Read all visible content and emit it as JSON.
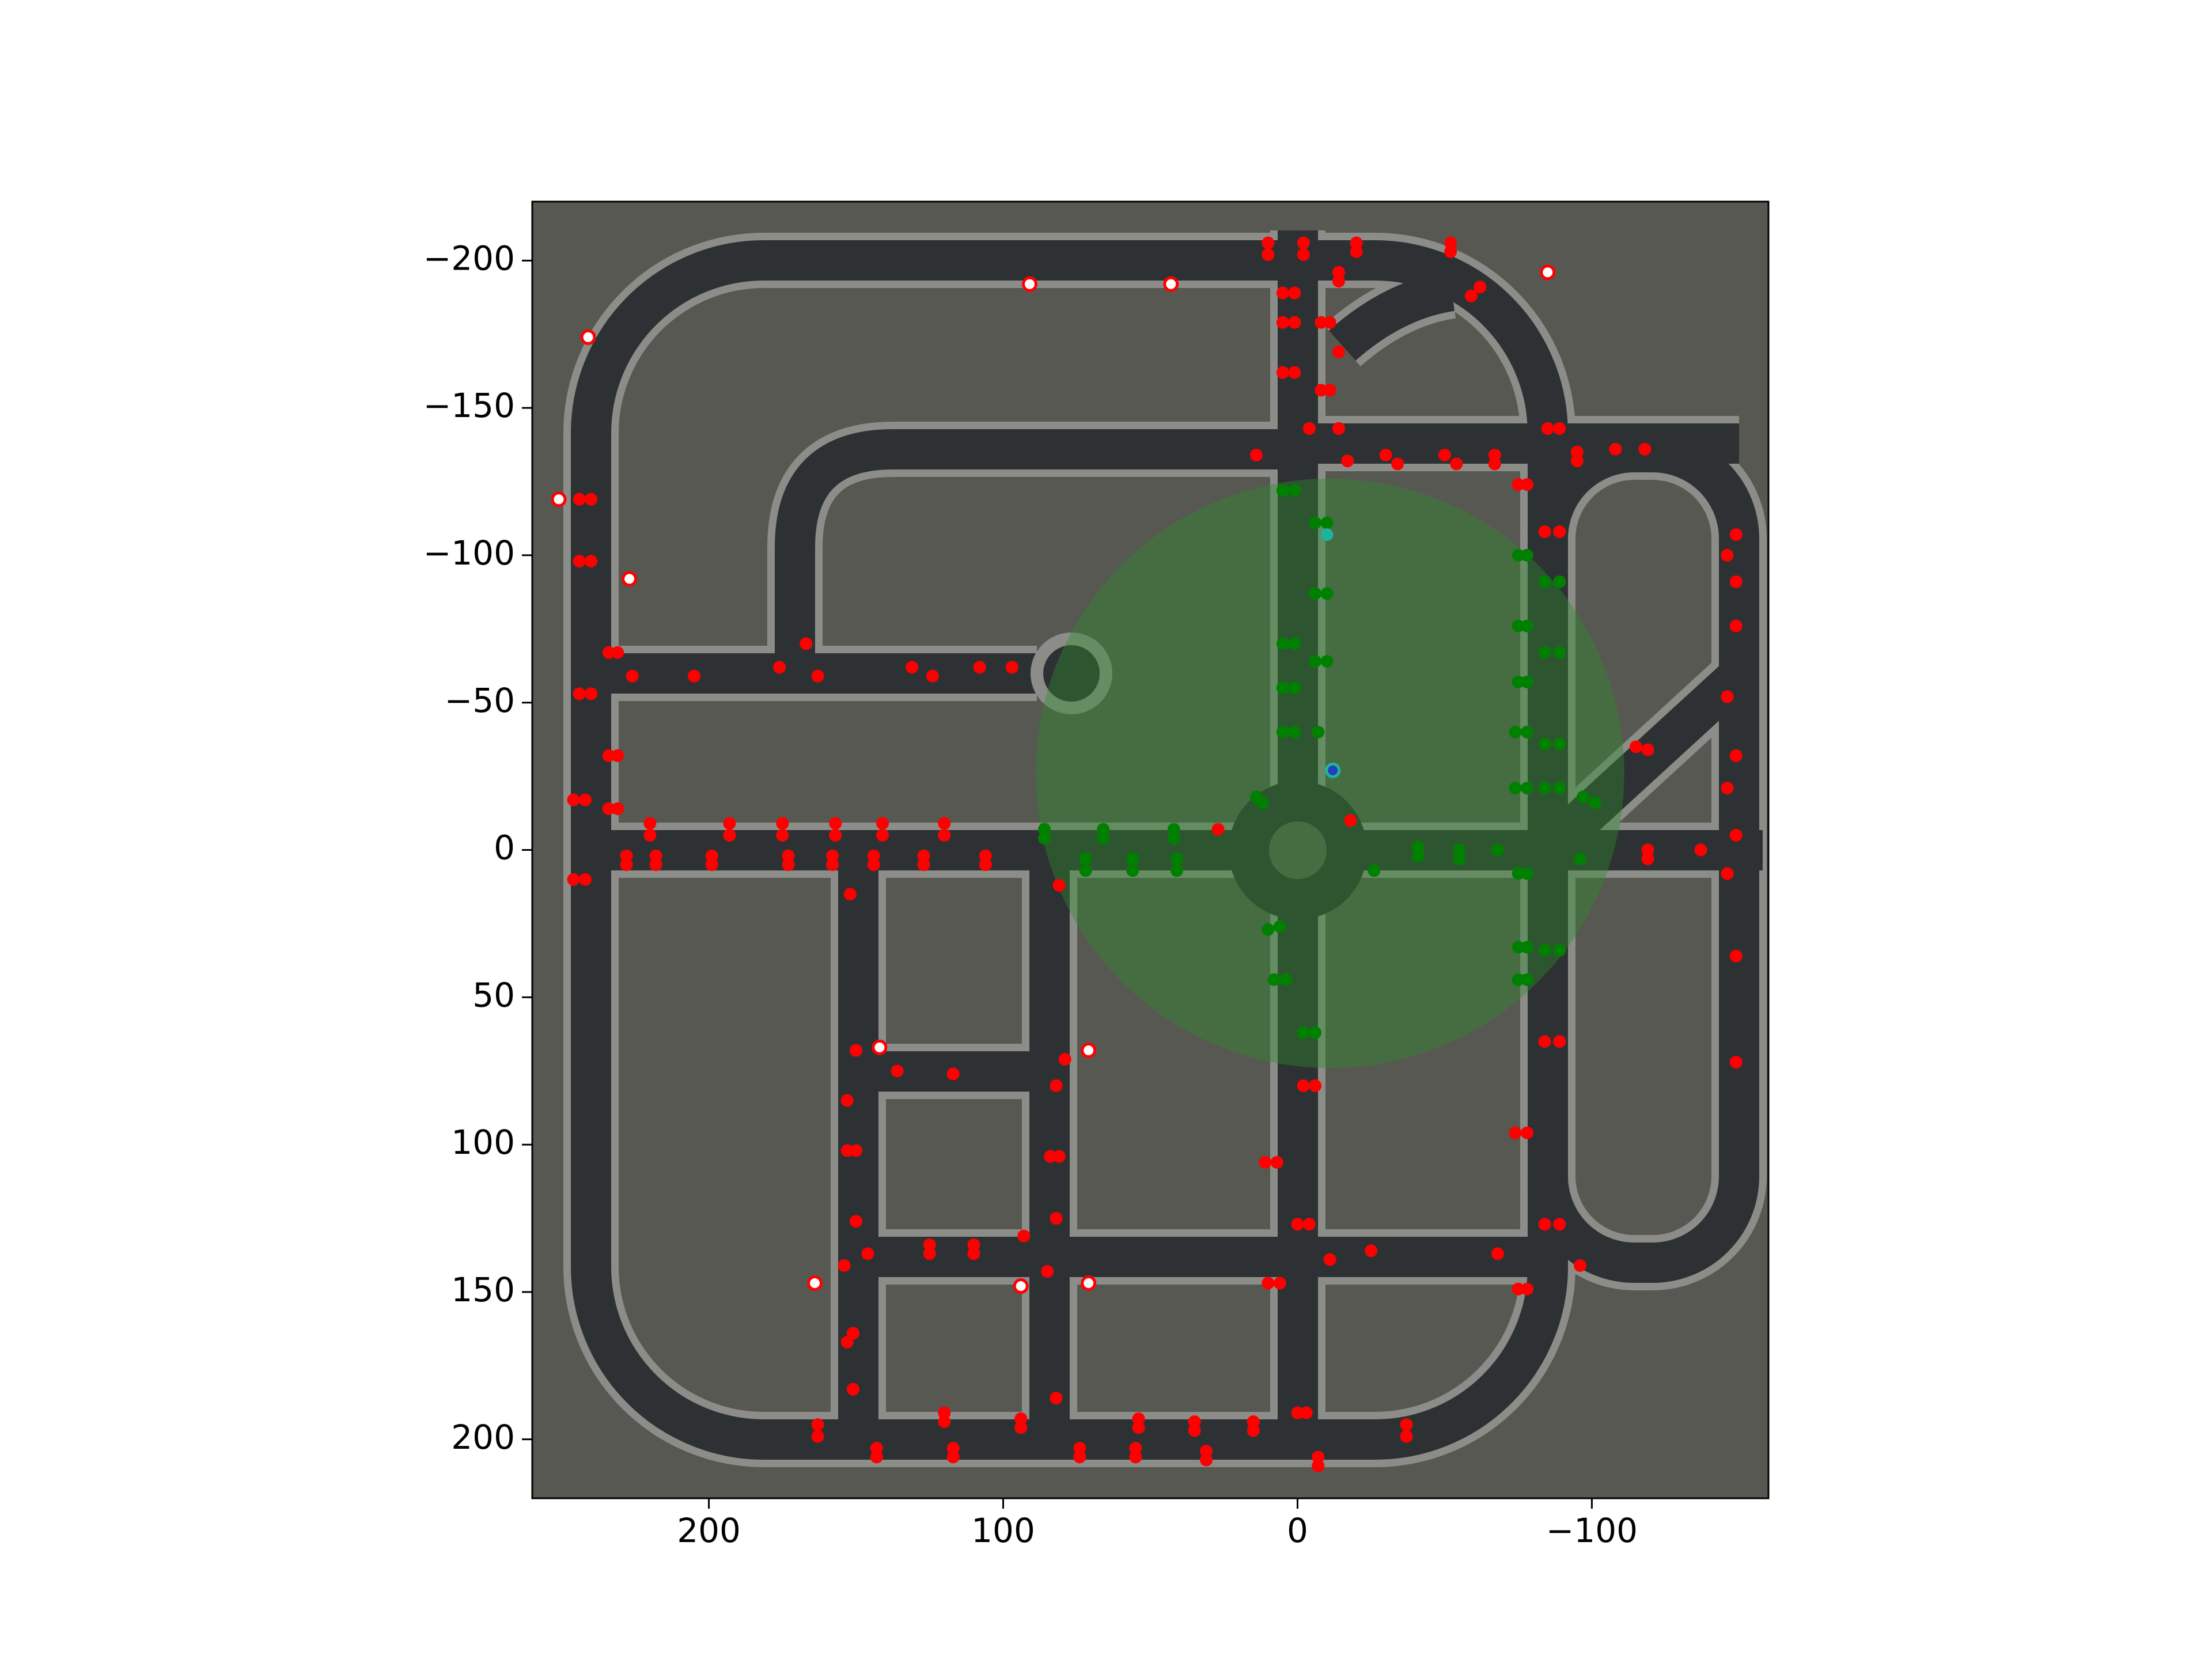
{
  "chart_data": {
    "type": "scatter",
    "xlim": [
      260,
      -160
    ],
    "ylim": [
      220,
      -220
    ],
    "xticks": [
      200,
      100,
      0,
      {
        "value": -100,
        "label": "−100"
      }
    ],
    "yticks": [
      {
        "value": -200,
        "label": "−200"
      },
      {
        "value": -150,
        "label": "−150"
      },
      {
        "value": -100,
        "label": "−100"
      },
      {
        "value": -50,
        "label": "−50"
      },
      0,
      50,
      100,
      150,
      200
    ],
    "circle": {
      "x": -11,
      "y": -26,
      "r": 100,
      "color": "#2e8b2e",
      "alpha": 0.4
    },
    "series": [
      {
        "color": "#ff0000",
        "x": [
          10,
          10,
          -2,
          -2,
          -20,
          -20,
          -52,
          -52,
          -14,
          -14,
          5,
          1,
          5,
          1,
          -8,
          -11,
          -14,
          5,
          1,
          -8,
          -11,
          -4,
          -14,
          14,
          -17,
          -30,
          -34,
          -50,
          -54,
          -67,
          -67,
          -85,
          -89,
          -95,
          -95,
          -108,
          -118,
          -59,
          -62,
          -75,
          -78,
          -84,
          -89,
          -149,
          -146,
          -149,
          -149,
          -146,
          -149,
          -146,
          -149,
          -146,
          -149,
          -149,
          -115,
          -119,
          -119,
          -119,
          -137,
          244,
          240,
          244,
          240,
          234,
          231,
          244,
          240,
          234,
          231,
          246,
          242,
          234,
          231,
          246,
          242,
          226,
          205,
          176,
          167,
          163,
          131,
          124,
          108,
          97,
          220,
          220,
          193,
          193,
          175,
          175,
          157,
          157,
          141,
          141,
          120,
          120,
          228,
          228,
          218,
          218,
          199,
          199,
          173,
          173,
          158,
          158,
          144,
          144,
          127,
          127,
          106,
          106,
          81,
          27,
          -18,
          152,
          150,
          136,
          117,
          79,
          82,
          153,
          153,
          150,
          84,
          81,
          150,
          82,
          154,
          146,
          125,
          125,
          110,
          110,
          93,
          85,
          11,
          7,
          -2,
          -6,
          0,
          -4,
          10,
          6,
          -11,
          -25,
          -68,
          -75,
          -78,
          -84,
          -89,
          -96,
          -74,
          -78,
          -84,
          -89,
          163,
          163,
          151,
          153,
          151,
          143,
          143,
          120,
          120,
          117,
          117,
          94,
          94,
          82,
          74,
          74,
          55,
          55,
          54,
          54,
          35,
          35,
          31,
          31,
          15,
          15,
          0,
          -3,
          -7,
          -7,
          -37,
          -37
        ],
        "values": [
          -206,
          -202,
          -206,
          -202,
          -206,
          -203,
          -206,
          -203,
          -196,
          -193,
          -189,
          -189,
          -179,
          -179,
          -179,
          -179,
          -169,
          -162,
          -162,
          -156,
          -156,
          -143,
          -143,
          -134,
          -132,
          -134,
          -131,
          -134,
          -131,
          -134,
          -131,
          -143,
          -143,
          -135,
          -132,
          -136,
          -136,
          -188,
          -191,
          -124,
          -124,
          -108,
          -108,
          -107,
          -100,
          -91,
          -76,
          -52,
          -32,
          -21,
          -5,
          8,
          36,
          72,
          -35,
          -34,
          0,
          3,
          0,
          -119,
          -119,
          -98,
          -98,
          -67,
          -67,
          -53,
          -53,
          -32,
          -32,
          -17,
          -17,
          -14,
          -14,
          10,
          10,
          -59,
          -59,
          -62,
          -70,
          -59,
          -62,
          -59,
          -62,
          -62,
          -9,
          -5,
          -9,
          -5,
          -9,
          -5,
          -9,
          -5,
          -9,
          -5,
          -9,
          -5,
          2,
          5,
          2,
          5,
          2,
          5,
          2,
          5,
          2,
          5,
          2,
          5,
          2,
          5,
          2,
          5,
          12,
          -7,
          -10,
          15,
          68,
          75,
          76,
          71,
          80,
          85,
          102,
          102,
          104,
          104,
          126,
          125,
          141,
          137,
          134,
          137,
          134,
          137,
          131,
          143,
          106,
          106,
          80,
          80,
          127,
          127,
          147,
          147,
          139,
          136,
          137,
          149,
          149,
          127,
          127,
          141,
          96,
          96,
          65,
          65,
          195,
          199,
          164,
          167,
          183,
          203,
          206,
          191,
          194,
          203,
          206,
          193,
          196,
          186,
          203,
          206,
          203,
          206,
          193,
          196,
          194,
          197,
          204,
          207,
          194,
          197,
          191,
          191,
          206,
          209,
          195,
          199
        ]
      },
      {
        "color": "#008000",
        "x": [
          5,
          1,
          -6,
          -10,
          -6,
          -10,
          5,
          1,
          -6,
          -10,
          5,
          1,
          5,
          1,
          -7,
          -75,
          -78,
          -84,
          -89,
          -75,
          -78,
          -84,
          -89,
          -75,
          -78,
          -74,
          -78,
          -84,
          -89,
          -74,
          -78,
          -84,
          -89,
          -97,
          -101,
          86,
          86,
          66,
          66,
          42,
          42,
          72,
          72,
          56,
          56,
          41,
          41,
          14,
          12,
          -41,
          -41,
          -55,
          -55,
          -68,
          -75,
          -78,
          -96,
          -26,
          10,
          6,
          8,
          4,
          -75,
          -78,
          -84,
          -89,
          -75,
          -78,
          -2,
          -6
        ],
        "values": [
          -122,
          -122,
          -111,
          -111,
          -87,
          -87,
          -70,
          -70,
          -64,
          -64,
          -55,
          -55,
          -40,
          -40,
          -40,
          -100,
          -100,
          -91,
          -91,
          -76,
          -76,
          -67,
          -67,
          -57,
          -57,
          -40,
          -40,
          -36,
          -36,
          -21,
          -21,
          -21,
          -21,
          -18,
          -16,
          -7,
          -4,
          -7,
          -4,
          -7,
          -4,
          3,
          7,
          3,
          7,
          3,
          7,
          -18,
          -16,
          -1,
          2,
          0,
          3,
          0,
          8,
          8,
          3,
          7,
          27,
          26,
          44,
          44,
          33,
          33,
          34,
          34,
          44,
          44,
          62,
          62
        ]
      },
      {
        "color": "#ffffff",
        "edgecolor": "#ff0000",
        "x": [
          91,
          43,
          241,
          251,
          227,
          142,
          71,
          164,
          94,
          71,
          -85
        ],
        "values": [
          -192,
          -192,
          -174,
          -119,
          -92,
          67,
          68,
          147,
          148,
          147,
          -196
        ]
      },
      {
        "color": "#20b2a0",
        "x": [
          -10
        ],
        "values": [
          -107
        ]
      },
      {
        "color": "#1f3fbf",
        "edgecolor": "#20b2a0",
        "x": [
          -12
        ],
        "values": [
          -27
        ]
      }
    ]
  }
}
